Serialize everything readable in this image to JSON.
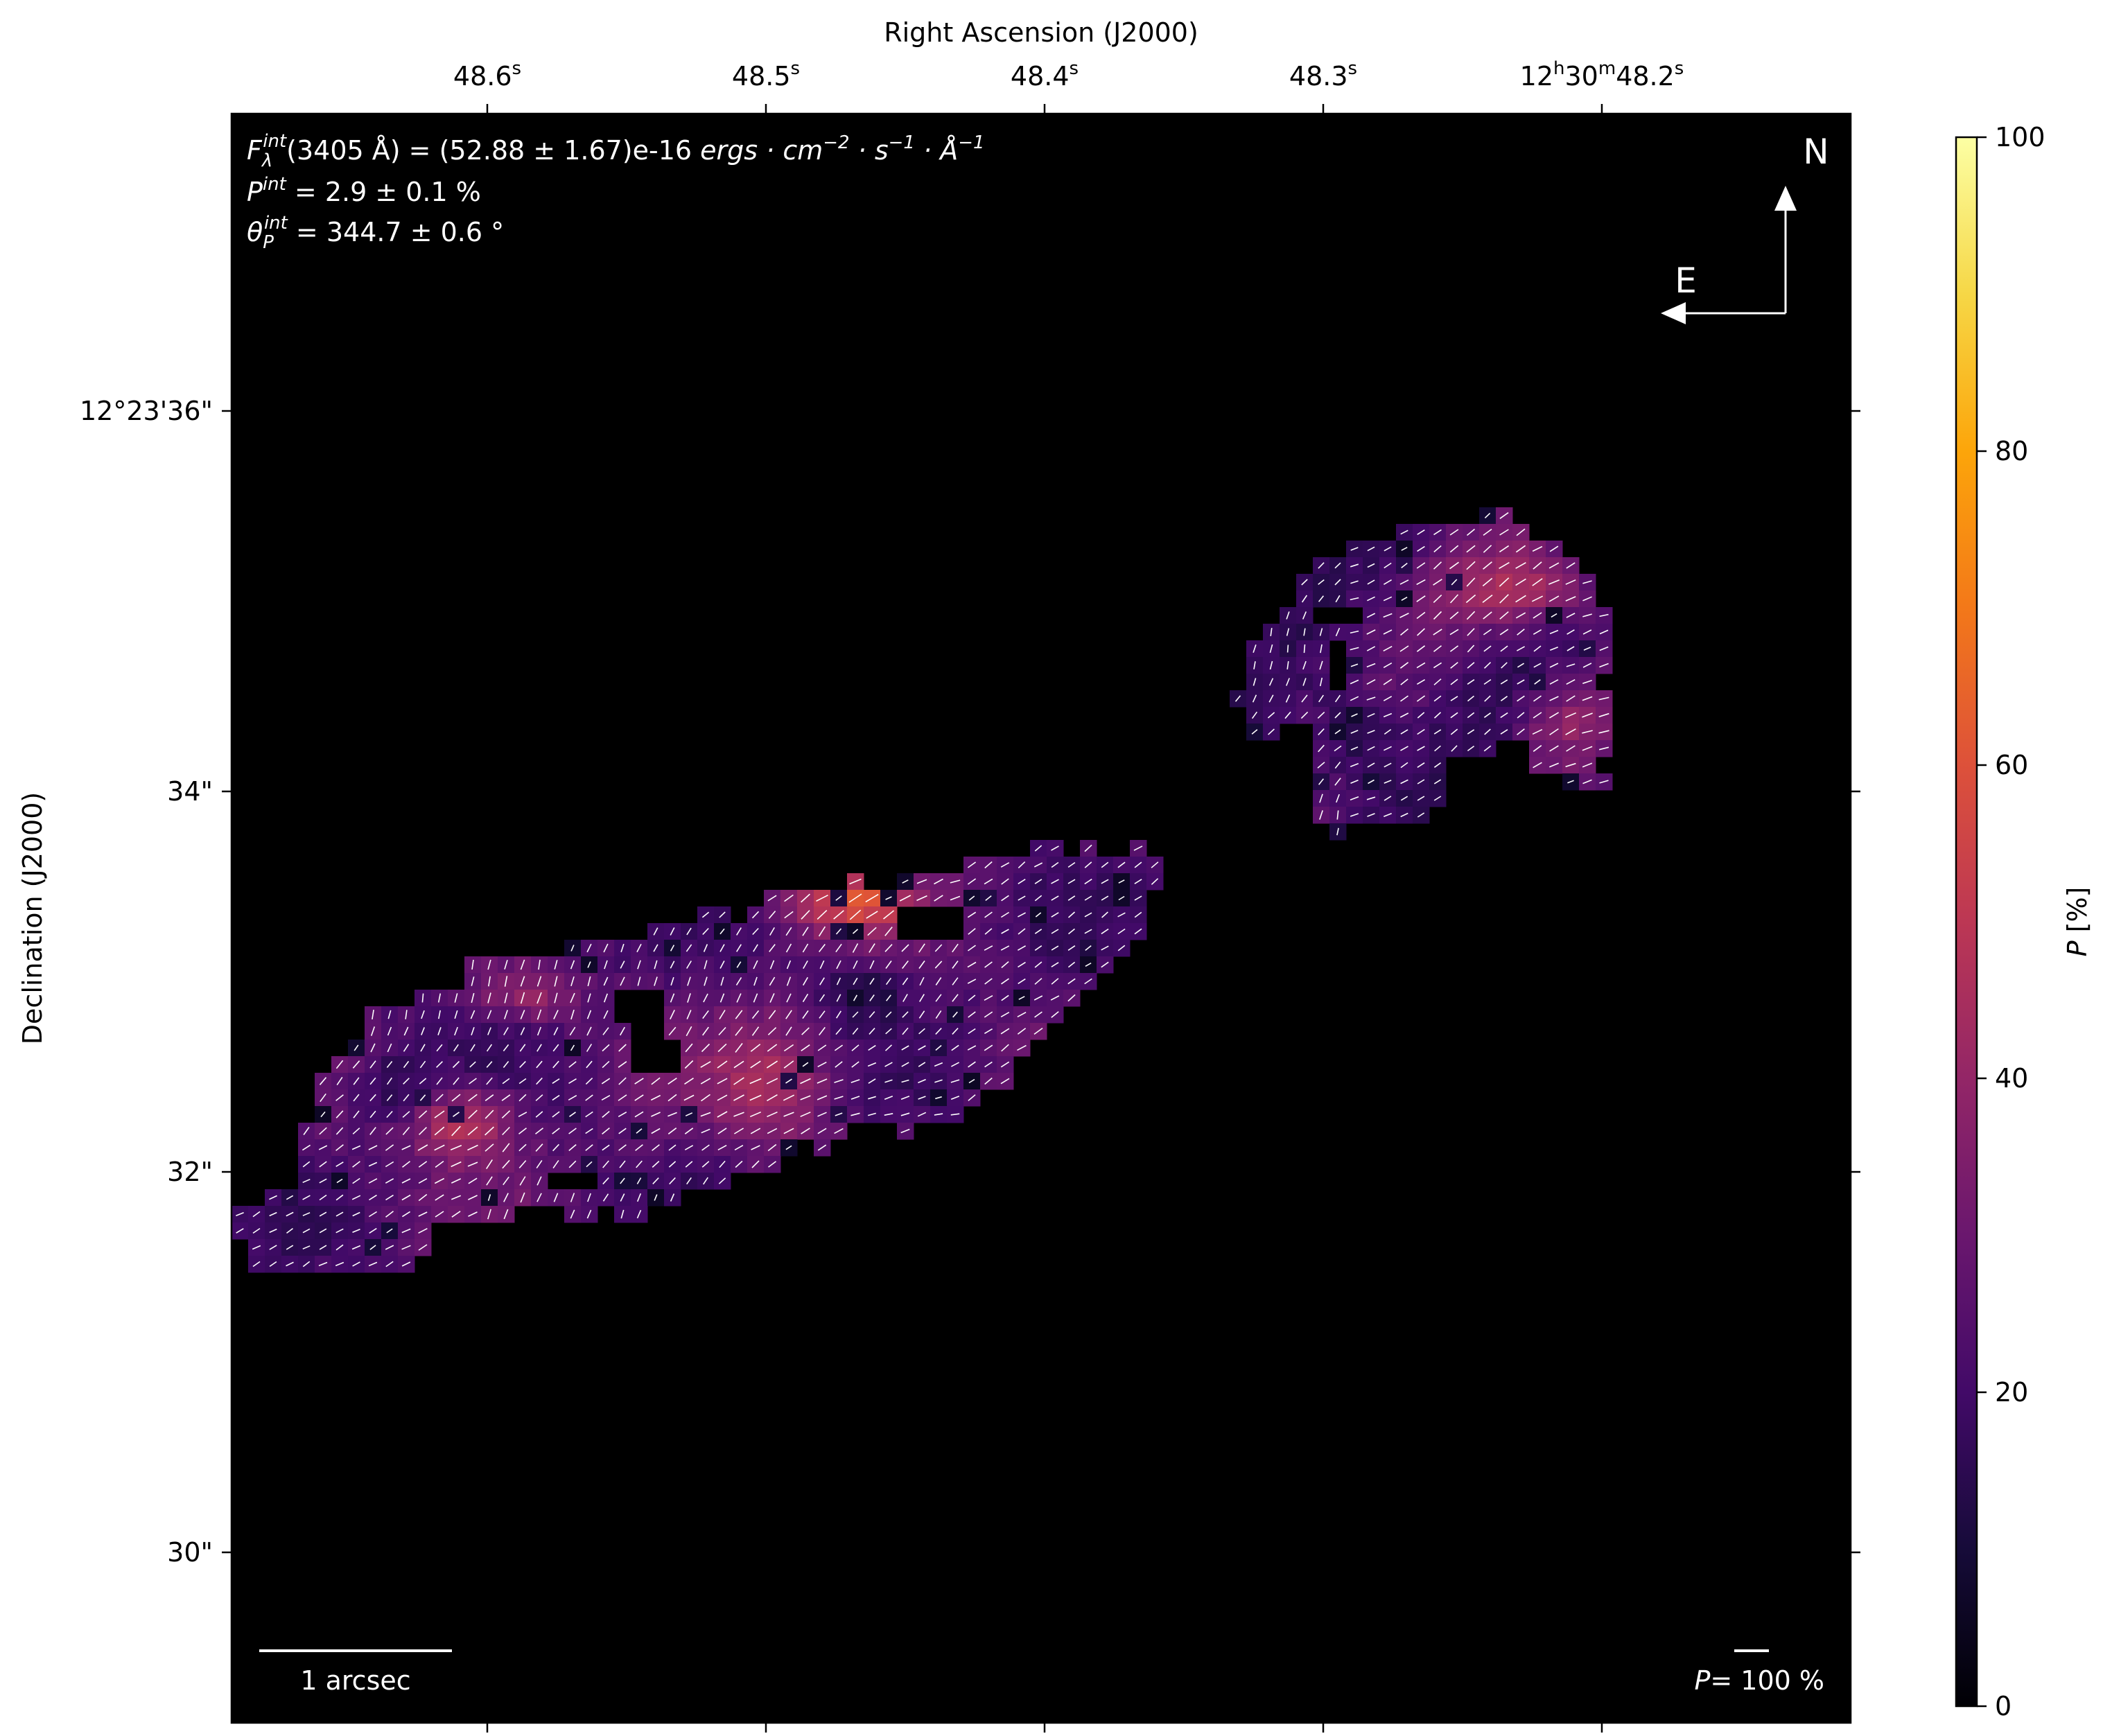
{
  "chart_data": {
    "type": "heatmap",
    "title": "",
    "xlabel": "Right Ascension (J2000)",
    "ylabel": "Declination (J2000)",
    "x_ticks": [
      {
        "label": "48.6",
        "sup": "s"
      },
      {
        "label": "48.5",
        "sup": "s"
      },
      {
        "label": "48.4",
        "sup": "s"
      },
      {
        "label": "48.3",
        "sup": "s"
      },
      {
        "label": "12",
        "sup": "h",
        "label2": "30",
        "sup2": "m",
        "label3": "48.2",
        "sup3": "s"
      }
    ],
    "y_ticks": [
      "12°23'36\"",
      "34\"",
      "32\"",
      "30\""
    ],
    "colorbar": {
      "label_var": "P",
      "label_unit": " [%]",
      "range": [
        0,
        100
      ],
      "ticks": [
        "0",
        "20",
        "40",
        "60",
        "80",
        "100"
      ],
      "colormap": "inferno"
    },
    "annotations": {
      "flux_prefix": "F",
      "flux_sub": "λ",
      "flux_sup": "int",
      "flux_text": "(3405 Å) = (52.88 ± 1.67)e-16",
      "flux_units": "ergs · cm",
      "flux_units_sup1": "−2",
      "flux_units_mid": " · s",
      "flux_units_sup2": "−1",
      "flux_units_end": " · Å",
      "flux_units_sup3": "−1",
      "pol_prefix": "P",
      "pol_sup": "int",
      "pol_text": " = 2.9 ± 0.1 %",
      "theta_prefix": "θ",
      "theta_sub": "P",
      "theta_sup": "int",
      "theta_text": " = 344.7 ± 0.6 °",
      "compass_n": "N",
      "compass_e": "E",
      "scalebar_label": "1 arcsec",
      "vector_scale_var": "P",
      "vector_scale_text": "= 100 %"
    },
    "regions": [
      {
        "name": "elongated-structure",
        "polarization_range_percent": [
          5,
          55
        ],
        "peak_percent": 55
      },
      {
        "name": "northern-structure",
        "polarization_range_percent": [
          5,
          50
        ],
        "peak_percent": 48
      }
    ],
    "grid": false
  }
}
